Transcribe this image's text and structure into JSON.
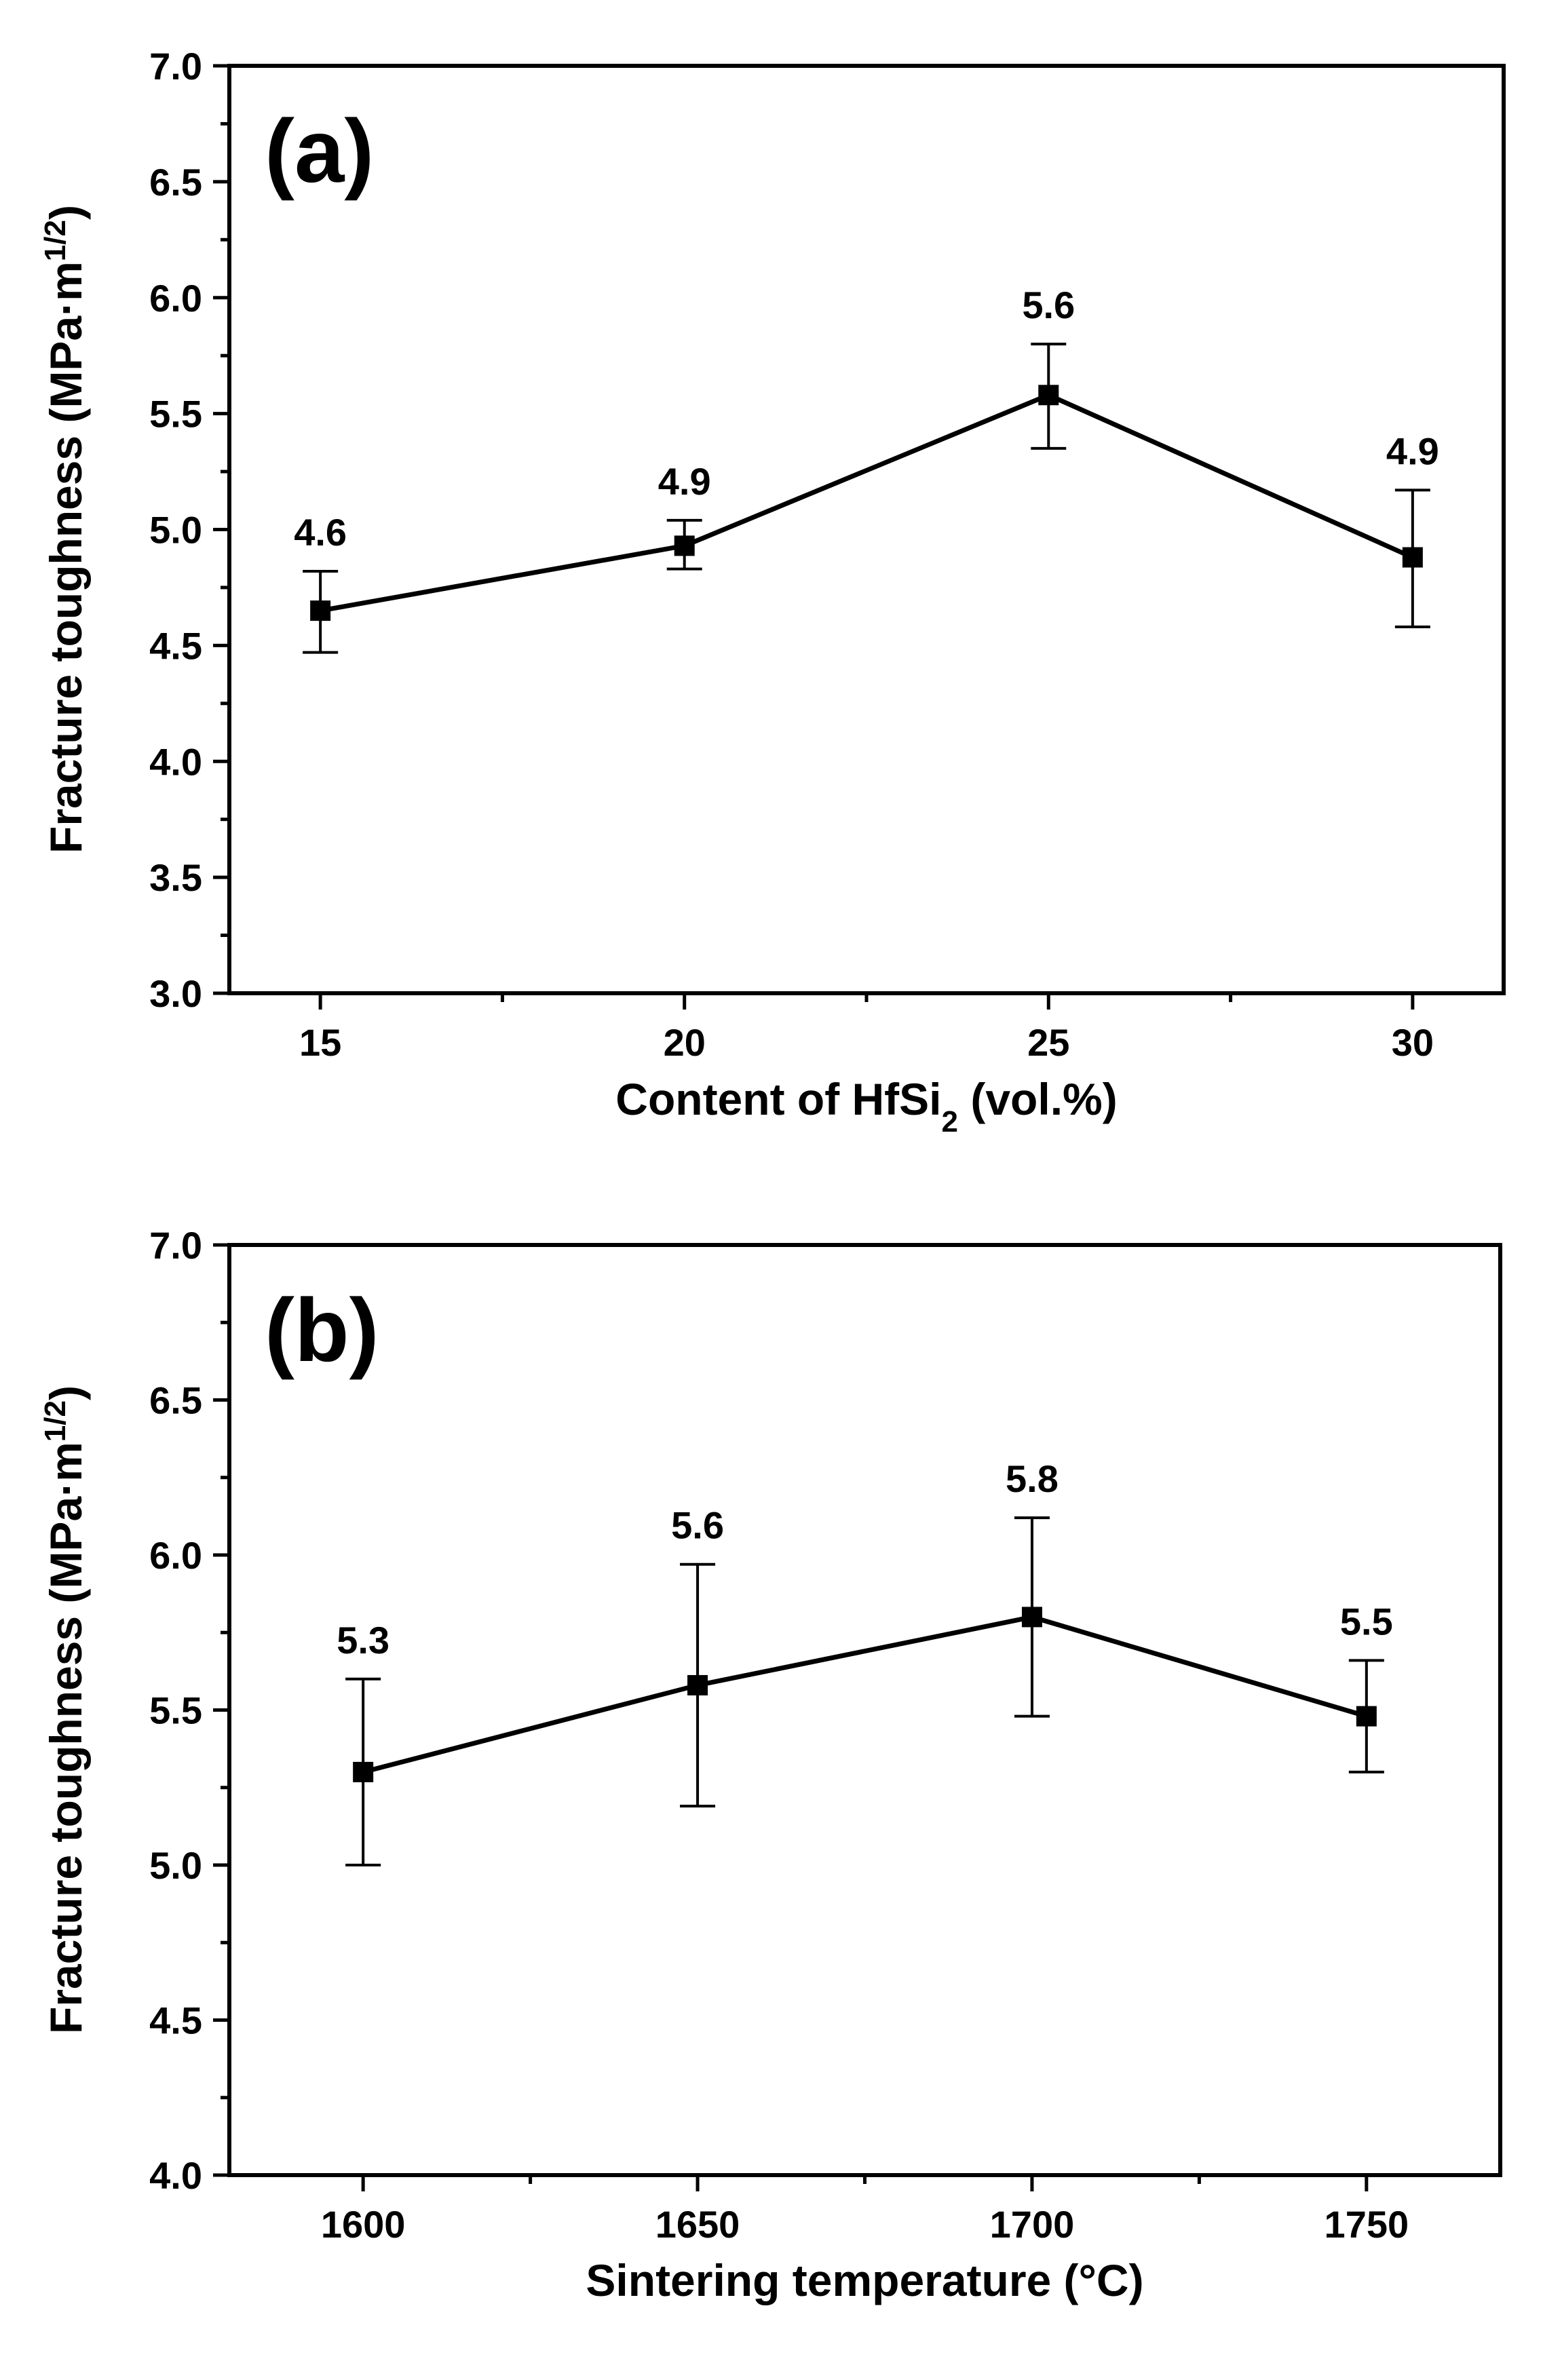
{
  "chart_data": [
    {
      "type": "line",
      "panel_label": "(a)",
      "title": "",
      "xlabel": {
        "main": "Content of HfSi",
        "sub": "2",
        "suffix": " (vol.%)"
      },
      "ylabel": {
        "main": "Fracture toughness (MPa·m",
        "sup": "1/2",
        "suffix": ")"
      },
      "xlim": [
        13.75,
        31.25
      ],
      "ylim": [
        3.0,
        7.0
      ],
      "x_ticks": [
        15,
        20,
        25,
        30
      ],
      "x_tick_labels": [
        "15",
        "20",
        "25",
        "30"
      ],
      "y_ticks": [
        3.0,
        3.5,
        4.0,
        4.5,
        5.0,
        5.5,
        6.0,
        6.5,
        7.0
      ],
      "y_tick_labels": [
        "3.0",
        "3.5",
        "4.0",
        "4.5",
        "5.0",
        "5.5",
        "6.0",
        "6.5",
        "7.0"
      ],
      "grid": false,
      "series": [
        {
          "name": "Fracture toughness",
          "x": [
            15,
            20,
            25,
            30
          ],
          "y": [
            4.65,
            4.93,
            5.58,
            4.88
          ],
          "err_low": [
            4.47,
            4.83,
            5.35,
            4.58
          ],
          "err_high": [
            4.82,
            5.04,
            5.8,
            5.17
          ],
          "data_labels": [
            "4.6",
            "4.9",
            "5.6",
            "4.9"
          ],
          "marker": "square",
          "color": "#000000"
        }
      ]
    },
    {
      "type": "line",
      "panel_label": "(b)",
      "title": "",
      "xlabel": {
        "main": "Sintering temperature  (°C)",
        "sub": "",
        "suffix": ""
      },
      "ylabel": {
        "main": "Fracture toughness (MPa·m",
        "sup": "1/2",
        "suffix": ")"
      },
      "xlim": [
        1580,
        1770
      ],
      "ylim": [
        4.0,
        7.0
      ],
      "x_ticks": [
        1600,
        1650,
        1700,
        1750
      ],
      "x_tick_labels": [
        "1600",
        "1650",
        "1700",
        "1750"
      ],
      "y_ticks": [
        4.0,
        4.5,
        5.0,
        5.5,
        6.0,
        6.5,
        7.0
      ],
      "y_tick_labels": [
        "4.0",
        "4.5",
        "5.0",
        "5.5",
        "6.0",
        "6.5",
        "7.0"
      ],
      "grid": false,
      "series": [
        {
          "name": "Fracture toughness",
          "x": [
            1600,
            1650,
            1700,
            1750
          ],
          "y": [
            5.3,
            5.58,
            5.8,
            5.48
          ],
          "err_low": [
            5.0,
            5.19,
            5.48,
            5.3
          ],
          "err_high": [
            5.6,
            5.97,
            6.12,
            5.66
          ],
          "data_labels": [
            "5.3",
            "5.6",
            "5.8",
            "5.5"
          ],
          "marker": "square",
          "color": "#000000"
        }
      ]
    }
  ]
}
